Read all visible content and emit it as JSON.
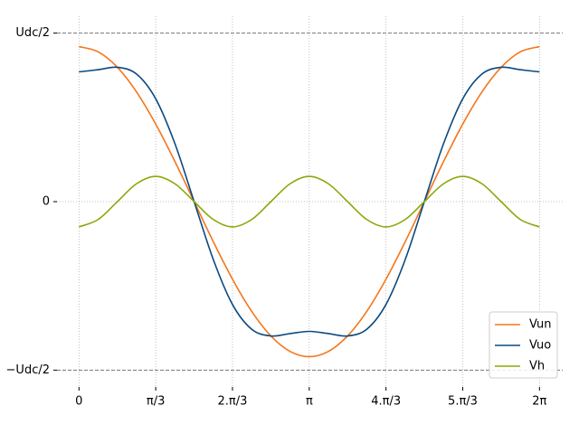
{
  "chart_data": {
    "type": "line",
    "x": [
      0,
      0.262,
      0.524,
      0.785,
      1.047,
      1.309,
      1.571,
      1.833,
      2.094,
      2.356,
      2.618,
      2.88,
      3.142,
      3.403,
      3.665,
      3.927,
      4.189,
      4.451,
      4.712,
      4.974,
      5.236,
      5.498,
      5.76,
      6.021,
      6.283
    ],
    "series": [
      {
        "name": "Vun",
        "color": "#f5761a",
        "values": [
          0.92,
          0.889,
          0.797,
          0.651,
          0.46,
          0.238,
          0,
          -0.238,
          -0.46,
          -0.651,
          -0.797,
          -0.889,
          -0.92,
          -0.889,
          -0.797,
          -0.651,
          -0.46,
          -0.238,
          0,
          0.238,
          0.46,
          0.651,
          0.797,
          0.889,
          0.92
        ]
      },
      {
        "name": "Vuo",
        "color": "#0b4a80",
        "values": [
          0.77,
          0.783,
          0.797,
          0.757,
          0.61,
          0.344,
          0,
          -0.344,
          -0.61,
          -0.757,
          -0.797,
          -0.783,
          -0.77,
          -0.783,
          -0.797,
          -0.757,
          -0.61,
          -0.344,
          0,
          0.344,
          0.61,
          0.757,
          0.797,
          0.783,
          0.77
        ]
      },
      {
        "name": "Vh",
        "color": "#8aa80a",
        "values": [
          -0.15,
          -0.106,
          0,
          0.106,
          0.15,
          0.106,
          0,
          -0.106,
          -0.15,
          -0.106,
          0,
          0.106,
          0.15,
          0.106,
          0,
          -0.106,
          -0.15,
          -0.106,
          0,
          0.106,
          0.15,
          0.106,
          0,
          -0.106,
          -0.15
        ]
      }
    ],
    "xlim": [
      -0.3,
      6.6
    ],
    "ylim": [
      -1.1,
      1.1
    ],
    "xticks": [
      {
        "value": 0,
        "label": "0"
      },
      {
        "value": 1.047,
        "label": "π/3"
      },
      {
        "value": 2.094,
        "label": "2.π/3"
      },
      {
        "value": 3.142,
        "label": "π"
      },
      {
        "value": 4.189,
        "label": "4.π/3"
      },
      {
        "value": 5.236,
        "label": "5.π/3"
      },
      {
        "value": 6.283,
        "label": "2π"
      }
    ],
    "yticks": [
      {
        "value": -1,
        "label": "−Udc/2"
      },
      0,
      {
        "value": 1,
        "label": "Udc/2"
      }
    ],
    "reference_lines": [
      1,
      -1
    ],
    "grid": true,
    "legend": "lower right"
  }
}
